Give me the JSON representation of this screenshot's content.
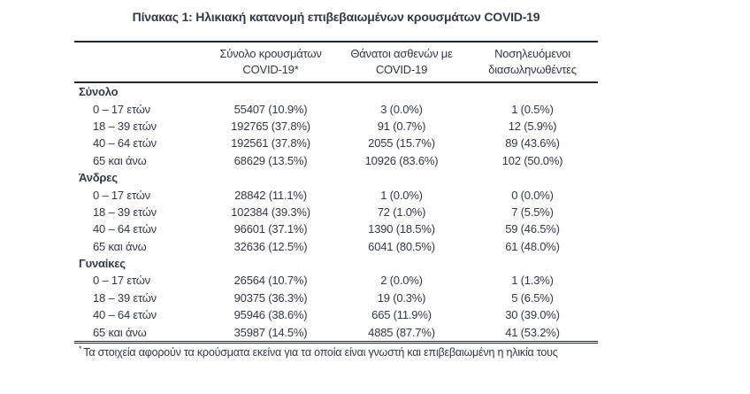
{
  "title": "Πίνακας 1: Ηλικιακή κατανομή επιβεβαιωμένων κρουσμάτων COVID-19",
  "colors": {
    "text": "#333945",
    "rule": "#23272e",
    "background": "#ffffff"
  },
  "table": {
    "columns": [
      {
        "line1": "",
        "line2": ""
      },
      {
        "line1": "Σύνολο κρουσμάτων",
        "line2": "COVID-19*"
      },
      {
        "line1": "Θάνατοι ασθενών με",
        "line2": "COVID-19"
      },
      {
        "line1": "Νοσηλευόμενοι",
        "line2": "διασωληνωθέντες"
      }
    ],
    "sections": [
      {
        "header": "Σύνολο",
        "rows": [
          {
            "label": "0 – 17 ετών",
            "cells": [
              "55407 (10.9%)",
              "3 (0.0%)",
              "1 (0.5%)"
            ]
          },
          {
            "label": "18 – 39 ετών",
            "cells": [
              "192765 (37.8%)",
              "91 (0.7%)",
              "12 (5.9%)"
            ]
          },
          {
            "label": "40 – 64 ετών",
            "cells": [
              "192561 (37.8%)",
              "2055 (15.7%)",
              "89 (43.6%)"
            ]
          },
          {
            "label": "65 και άνω",
            "cells": [
              "68629 (13.5%)",
              "10926 (83.6%)",
              "102 (50.0%)"
            ]
          }
        ]
      },
      {
        "header": "Άνδρες",
        "rows": [
          {
            "label": "0 – 17 ετών",
            "cells": [
              "28842 (11.1%)",
              "1 (0.0%)",
              "0 (0.0%)"
            ]
          },
          {
            "label": "18 – 39 ετών",
            "cells": [
              "102384 (39.3%)",
              "72 (1.0%)",
              "7 (5.5%)"
            ]
          },
          {
            "label": "40 – 64 ετών",
            "cells": [
              "96601 (37.1%)",
              "1390 (18.5%)",
              "59 (46.5%)"
            ]
          },
          {
            "label": "65 και άνω",
            "cells": [
              "32636 (12.5%)",
              "6041 (80.5%)",
              "61 (48.0%)"
            ]
          }
        ]
      },
      {
        "header": "Γυναίκες",
        "rows": [
          {
            "label": "0 – 17 ετών",
            "cells": [
              "26564 (10.7%)",
              "2 (0.0%)",
              "1 (1.3%)"
            ]
          },
          {
            "label": "18 – 39 ετών",
            "cells": [
              "90375 (36.3%)",
              "19 (0.3%)",
              "5 (6.5%)"
            ]
          },
          {
            "label": "40 – 64 ετών",
            "cells": [
              "95946 (38.6%)",
              "665 (11.9%)",
              "30 (39.0%)"
            ]
          },
          {
            "label": "65 και άνω",
            "cells": [
              "35987 (14.5%)",
              "4885 (87.7%)",
              "41 (53.2%)"
            ]
          }
        ]
      }
    ],
    "footnote": {
      "marker": "*",
      "text": "Τα στοιχεία αφορούν τα κρούσματα εκείνα για τα οποία είναι γνωστή και επιβεβαιωμένη η ηλικία τους"
    }
  }
}
